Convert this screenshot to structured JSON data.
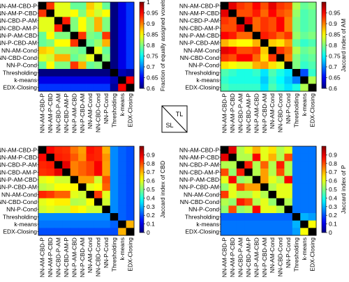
{
  "chart_data": {
    "type": "heatmap",
    "labels": [
      "NN-AM-CBD-P",
      "NN-AM-P-CBD",
      "NN-CBD-P-AM",
      "NN-CBD-AM-P",
      "NN-P-AM-CBD",
      "NN-P-CBD-AM",
      "NN-AM-Cond",
      "NN-CBD-Cond",
      "NN-P-Cond",
      "Thresholding",
      "k-means",
      "EDX-Closing"
    ],
    "key": {
      "top": "TL",
      "bottom": "SL"
    },
    "colormap": "jet",
    "diagonal_color": "#000000",
    "panels": [
      {
        "position": "top-left",
        "triangle": "upper",
        "colorbar_label": "Fraction of equally assigned voxels",
        "clim": [
          0.6,
          1.0
        ],
        "ticks": [
          "1",
          "0.95",
          "0.9",
          "0.85",
          "0.8",
          "0.75",
          "0.7",
          "0.65",
          "0.6"
        ],
        "show_row_labels": true,
        "show_col_labels": true,
        "matrix": [
          [
            1.0,
            0.93,
            0.84,
            0.84,
            0.79,
            0.79,
            0.87,
            0.84,
            0.79,
            0.6,
            0.64,
            0.67
          ],
          [
            0.93,
            1.0,
            0.84,
            0.84,
            0.85,
            0.8,
            0.86,
            0.83,
            0.85,
            0.6,
            0.64,
            0.67
          ],
          [
            0.84,
            0.84,
            1.0,
            0.94,
            0.8,
            0.85,
            0.81,
            0.88,
            0.8,
            0.6,
            0.64,
            0.67
          ],
          [
            0.84,
            0.84,
            0.94,
            1.0,
            0.8,
            0.85,
            0.81,
            0.88,
            0.8,
            0.6,
            0.64,
            0.67
          ],
          [
            0.79,
            0.85,
            0.8,
            0.8,
            1.0,
            0.93,
            0.8,
            0.79,
            0.93,
            0.6,
            0.64,
            0.67
          ],
          [
            0.79,
            0.8,
            0.85,
            0.85,
            0.93,
            1.0,
            0.79,
            0.81,
            0.88,
            0.6,
            0.64,
            0.67
          ],
          [
            0.87,
            0.86,
            0.81,
            0.81,
            0.8,
            0.79,
            1.0,
            0.84,
            0.79,
            0.6,
            0.64,
            0.67
          ],
          [
            0.84,
            0.83,
            0.88,
            0.88,
            0.79,
            0.81,
            0.84,
            1.0,
            0.8,
            0.6,
            0.64,
            0.67
          ],
          [
            0.79,
            0.85,
            0.8,
            0.8,
            0.93,
            0.88,
            0.79,
            0.8,
            1.0,
            0.6,
            0.64,
            0.67
          ],
          [
            0.6,
            0.6,
            0.6,
            0.6,
            0.6,
            0.6,
            0.6,
            0.6,
            0.6,
            1.0,
            0.62,
            0.61
          ],
          [
            0.64,
            0.64,
            0.64,
            0.64,
            0.64,
            0.64,
            0.64,
            0.64,
            0.64,
            0.62,
            1.0,
            0.95
          ],
          [
            0.67,
            0.67,
            0.67,
            0.67,
            0.67,
            0.67,
            0.67,
            0.67,
            0.67,
            0.61,
            0.95,
            1.0
          ]
        ]
      },
      {
        "position": "top-right",
        "triangle": "lower",
        "colorbar_label": "Jaccard index of AM",
        "clim": [
          0.6,
          1.0
        ],
        "ticks": [
          "0.95",
          "0.9",
          "0.85",
          "0.8",
          "0.75",
          "0.7",
          "0.65",
          "0.6"
        ],
        "show_row_labels": true,
        "show_col_labels": true,
        "matrix": [
          [
            1.0,
            0.96,
            0.93,
            0.92,
            0.95,
            0.92,
            0.96,
            0.93,
            0.92,
            0.82,
            0.79,
            0.8
          ],
          [
            0.96,
            1.0,
            0.92,
            0.92,
            0.94,
            0.91,
            0.95,
            0.92,
            0.91,
            0.81,
            0.78,
            0.79
          ],
          [
            0.93,
            0.92,
            1.0,
            0.96,
            0.91,
            0.93,
            0.92,
            0.95,
            0.9,
            0.8,
            0.78,
            0.79
          ],
          [
            0.92,
            0.92,
            0.96,
            1.0,
            0.91,
            0.93,
            0.92,
            0.95,
            0.9,
            0.8,
            0.78,
            0.79
          ],
          [
            0.95,
            0.94,
            0.91,
            0.91,
            1.0,
            0.94,
            0.93,
            0.91,
            0.93,
            0.81,
            0.79,
            0.8
          ],
          [
            0.88,
            0.86,
            0.85,
            0.85,
            0.88,
            1.0,
            0.87,
            0.86,
            0.89,
            0.79,
            0.77,
            0.78
          ],
          [
            0.96,
            0.95,
            0.92,
            0.92,
            0.93,
            0.87,
            1.0,
            0.93,
            0.91,
            0.82,
            0.79,
            0.8
          ],
          [
            0.93,
            0.92,
            0.95,
            0.95,
            0.91,
            0.86,
            0.93,
            1.0,
            0.9,
            0.8,
            0.78,
            0.79
          ],
          [
            0.86,
            0.85,
            0.84,
            0.84,
            0.88,
            0.89,
            0.86,
            0.84,
            1.0,
            0.8,
            0.77,
            0.78
          ],
          [
            0.78,
            0.77,
            0.76,
            0.76,
            0.77,
            0.74,
            0.78,
            0.76,
            0.74,
            1.0,
            0.68,
            0.77
          ],
          [
            0.77,
            0.76,
            0.76,
            0.76,
            0.76,
            0.73,
            0.77,
            0.75,
            0.73,
            0.7,
            1.0,
            0.82
          ],
          [
            0.78,
            0.77,
            0.77,
            0.77,
            0.77,
            0.74,
            0.78,
            0.76,
            0.74,
            0.76,
            0.82,
            1.0
          ]
        ]
      },
      {
        "position": "bottom-left",
        "triangle": "lower",
        "colorbar_label": "Jaccard index of CBD",
        "clim": [
          0.0,
          1.0
        ],
        "ticks": [
          "0.9",
          "0.8",
          "0.7",
          "0.6",
          "0.5",
          "0.4",
          "0.3",
          "0.2",
          "0.1",
          "0"
        ],
        "show_row_labels": true,
        "show_col_labels": true,
        "matrix": [
          [
            1.0,
            0.87,
            0.84,
            0.83,
            0.76,
            0.72,
            0.86,
            0.84,
            0.7,
            0.26,
            0.22,
            0.2
          ],
          [
            0.87,
            1.0,
            0.85,
            0.84,
            0.79,
            0.73,
            0.85,
            0.84,
            0.73,
            0.26,
            0.22,
            0.2
          ],
          [
            0.84,
            0.85,
            1.0,
            0.9,
            0.75,
            0.78,
            0.81,
            0.88,
            0.72,
            0.26,
            0.22,
            0.2
          ],
          [
            0.83,
            0.84,
            0.9,
            1.0,
            0.75,
            0.78,
            0.81,
            0.88,
            0.72,
            0.26,
            0.22,
            0.2
          ],
          [
            0.6,
            0.62,
            0.58,
            0.58,
            1.0,
            0.72,
            0.72,
            0.58,
            0.8,
            0.26,
            0.22,
            0.2
          ],
          [
            0.56,
            0.58,
            0.62,
            0.62,
            0.63,
            1.0,
            0.6,
            0.62,
            0.78,
            0.26,
            0.22,
            0.2
          ],
          [
            0.84,
            0.82,
            0.78,
            0.78,
            0.6,
            0.58,
            1.0,
            0.82,
            0.6,
            0.26,
            0.22,
            0.2
          ],
          [
            0.6,
            0.62,
            0.64,
            0.64,
            0.55,
            0.56,
            0.62,
            1.0,
            0.58,
            0.26,
            0.22,
            0.2
          ],
          [
            0.58,
            0.6,
            0.58,
            0.58,
            0.64,
            0.62,
            0.58,
            0.58,
            1.0,
            0.26,
            0.22,
            0.2
          ],
          [
            0.26,
            0.26,
            0.26,
            0.26,
            0.26,
            0.26,
            0.26,
            0.26,
            0.26,
            1.0,
            0.22,
            0.2
          ],
          [
            0.24,
            0.24,
            0.24,
            0.24,
            0.24,
            0.24,
            0.24,
            0.24,
            0.24,
            0.22,
            1.0,
            0.7
          ],
          [
            0.2,
            0.2,
            0.2,
            0.2,
            0.2,
            0.2,
            0.2,
            0.2,
            0.2,
            0.2,
            0.7,
            1.0
          ]
        ]
      },
      {
        "position": "bottom-right",
        "triangle": "lower",
        "colorbar_label": "Jaccard index of P",
        "clim": [
          0.0,
          1.0
        ],
        "ticks": [
          "0.9",
          "0.8",
          "0.7",
          "0.6",
          "0.5",
          "0.4",
          "0.3",
          "0.2",
          "0.1",
          "0"
        ],
        "show_row_labels": true,
        "show_col_labels": true,
        "matrix": [
          [
            1.0,
            0.9,
            0.55,
            0.6,
            0.7,
            0.6,
            0.65,
            0.55,
            0.6,
            0.24,
            0.24,
            0.24
          ],
          [
            0.9,
            1.0,
            0.55,
            0.55,
            0.88,
            0.6,
            0.7,
            0.55,
            0.8,
            0.24,
            0.24,
            0.24
          ],
          [
            0.55,
            0.55,
            1.0,
            0.85,
            0.55,
            0.78,
            0.55,
            0.85,
            0.55,
            0.24,
            0.24,
            0.24
          ],
          [
            0.8,
            0.52,
            0.85,
            1.0,
            0.55,
            0.72,
            0.55,
            0.8,
            0.55,
            0.24,
            0.24,
            0.24
          ],
          [
            0.6,
            0.88,
            0.52,
            0.55,
            1.0,
            0.72,
            0.6,
            0.55,
            0.88,
            0.24,
            0.24,
            0.24
          ],
          [
            0.52,
            0.6,
            0.8,
            0.72,
            0.72,
            1.0,
            0.55,
            0.6,
            0.6,
            0.24,
            0.24,
            0.24
          ],
          [
            0.82,
            0.6,
            0.55,
            0.55,
            0.6,
            0.55,
            1.0,
            0.6,
            0.6,
            0.24,
            0.24,
            0.24
          ],
          [
            0.55,
            0.52,
            0.85,
            0.8,
            0.55,
            0.6,
            0.52,
            1.0,
            0.55,
            0.24,
            0.24,
            0.24
          ],
          [
            0.52,
            0.8,
            0.52,
            0.55,
            0.88,
            0.6,
            0.6,
            0.55,
            1.0,
            0.24,
            0.24,
            0.24
          ],
          [
            0.22,
            0.22,
            0.22,
            0.22,
            0.22,
            0.22,
            0.22,
            0.22,
            0.22,
            1.0,
            0.3,
            0.28
          ],
          [
            0.24,
            0.24,
            0.24,
            0.24,
            0.24,
            0.24,
            0.24,
            0.24,
            0.24,
            0.3,
            1.0,
            0.62
          ],
          [
            0.24,
            0.24,
            0.24,
            0.24,
            0.24,
            0.24,
            0.24,
            0.24,
            0.24,
            0.28,
            0.62,
            1.0
          ]
        ]
      }
    ]
  }
}
